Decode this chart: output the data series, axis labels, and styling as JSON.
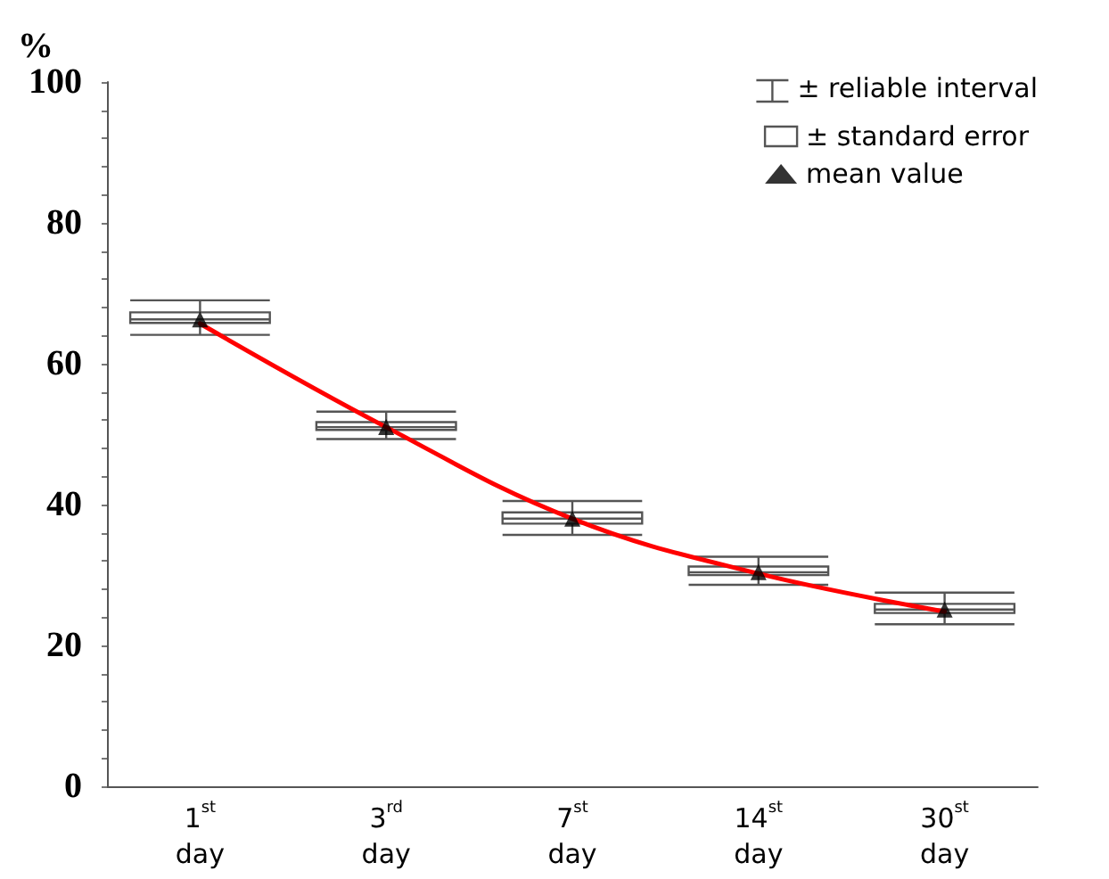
{
  "chart_data": {
    "type": "box",
    "ylabel": "%",
    "categories": [
      "1$^{st}$ day",
      "3$^{rd}$ day",
      "7$^{st}$ day",
      "14$^{st}$ day",
      "30$^{st}$ day"
    ],
    "ylim": [
      0,
      100
    ],
    "yticks": [
      0,
      20,
      40,
      60,
      80,
      100
    ],
    "grid": false,
    "legend": "top right",
    "annotations": [
      "± reliable interval"
    ],
    "series": [
      {
        "name": "± standard error",
        "color": "#555555",
        "boxes": [
          {
            "low": 64.1,
            "q1": 65.8,
            "median": 66.3,
            "q3": 67.3,
            "high": 69.0
          },
          {
            "low": 49.3,
            "q1": 50.6,
            "median": 51.0,
            "q3": 51.7,
            "high": 53.2
          },
          {
            "low": 35.7,
            "q1": 37.3,
            "median": 38.0,
            "q3": 38.9,
            "high": 40.5
          },
          {
            "low": 28.6,
            "q1": 30.0,
            "median": 30.4,
            "q3": 31.2,
            "high": 32.6
          },
          {
            "low": 23.0,
            "q1": 24.6,
            "median": 25.1,
            "q3": 25.9,
            "high": 27.5
          }
        ]
      },
      {
        "type": "line",
        "color": "#ff0000",
        "values": [
          65.7,
          51.0,
          38.0,
          30.2,
          24.8
        ],
        "marker": "none",
        "line_style": "solid"
      },
      {
        "name": "mean value",
        "type": "scatter",
        "color": "#000000",
        "marker": "triangle",
        "values": [
          66.3,
          51.0,
          38.0,
          30.4,
          25.1
        ]
      }
    ]
  }
}
